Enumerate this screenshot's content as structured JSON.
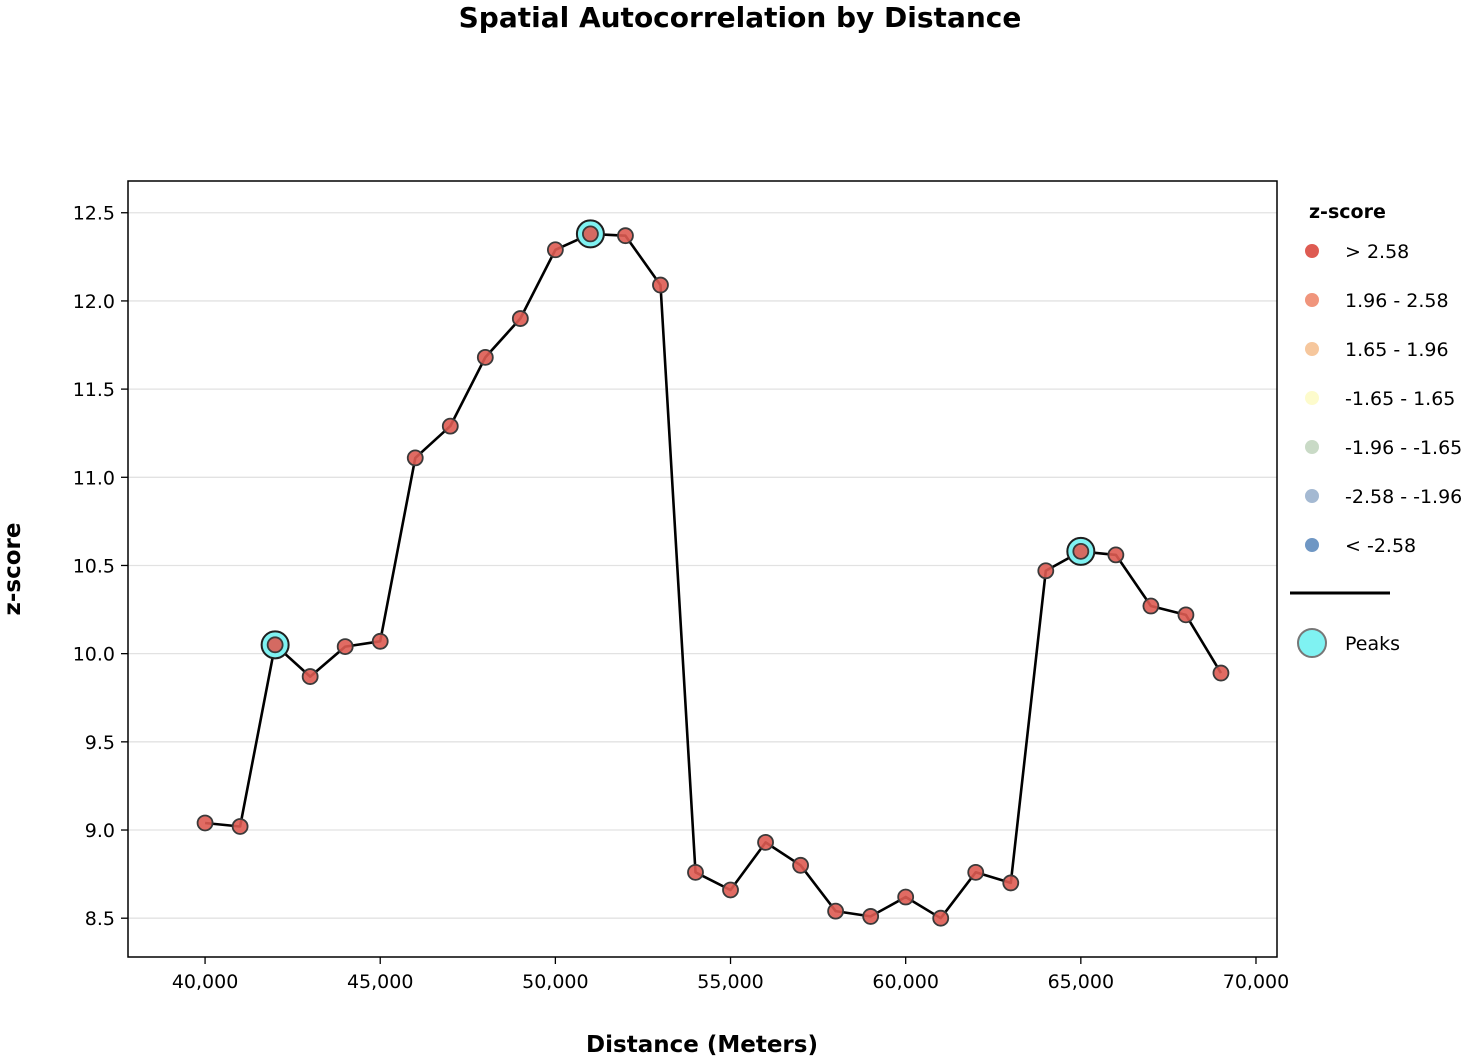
{
  "chart_data": {
    "type": "line",
    "title": "Spatial Autocorrelation by Distance",
    "xlabel": "Distance (Meters)",
    "ylabel": "z-score",
    "xlim": [
      37800,
      70600
    ],
    "ylim": [
      8.28,
      12.68
    ],
    "x_ticks": [
      {
        "value": 40000,
        "label": "40,000"
      },
      {
        "value": 45000,
        "label": "45,000"
      },
      {
        "value": 50000,
        "label": "50,000"
      },
      {
        "value": 55000,
        "label": "55,000"
      },
      {
        "value": 60000,
        "label": "60,000"
      },
      {
        "value": 65000,
        "label": "65,000"
      },
      {
        "value": 70000,
        "label": "70,000"
      }
    ],
    "y_ticks": [
      {
        "value": 8.5,
        "label": "8.5"
      },
      {
        "value": 9.0,
        "label": "9.0"
      },
      {
        "value": 9.5,
        "label": "9.5"
      },
      {
        "value": 10.0,
        "label": "10.0"
      },
      {
        "value": 10.5,
        "label": "10.5"
      },
      {
        "value": 11.0,
        "label": "11.0"
      },
      {
        "value": 11.5,
        "label": "11.5"
      },
      {
        "value": 12.0,
        "label": "12.0"
      },
      {
        "value": 12.5,
        "label": "12.5"
      }
    ],
    "grid": "horizontal",
    "line_color": "#000000",
    "point_color": "#de5b52",
    "peak_color": "#7ff2f2",
    "x": [
      40000,
      41000,
      42000,
      43000,
      44000,
      45000,
      46000,
      47000,
      48000,
      49000,
      50000,
      51000,
      52000,
      53000,
      54000,
      55000,
      56000,
      57000,
      58000,
      59000,
      60000,
      61000,
      62000,
      63000,
      64000,
      65000,
      66000,
      67000,
      68000,
      69000
    ],
    "y": [
      9.04,
      9.02,
      10.05,
      9.87,
      10.04,
      10.07,
      11.11,
      11.29,
      11.68,
      11.9,
      12.29,
      12.38,
      12.37,
      12.09,
      8.76,
      8.66,
      8.93,
      8.8,
      8.54,
      8.51,
      8.62,
      8.5,
      8.76,
      8.7,
      10.47,
      10.58,
      10.56,
      10.27,
      10.22,
      9.89
    ],
    "peaks": [
      {
        "x": 42000,
        "y": 10.05
      },
      {
        "x": 51000,
        "y": 12.38
      },
      {
        "x": 65000,
        "y": 10.58
      }
    ],
    "legend": {
      "title": "z-score",
      "position": "right",
      "items": [
        {
          "label": "> 2.58",
          "color": "#de5b52"
        },
        {
          "label": "1.96 - 2.58",
          "color": "#f0957c"
        },
        {
          "label": "1.65 - 1.96",
          "color": "#f6c79d"
        },
        {
          "label": "-1.65 - 1.65",
          "color": "#fdfbcc"
        },
        {
          "label": "-1.96 - -1.65",
          "color": "#c9dac6"
        },
        {
          "label": "-2.58 - -1.96",
          "color": "#a4b9d2"
        },
        {
          "label": "< -2.58",
          "color": "#6f97c4"
        }
      ],
      "peaks_label": "Peaks"
    }
  }
}
